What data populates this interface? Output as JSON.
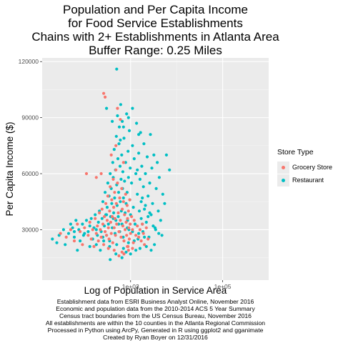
{
  "title_lines": [
    "Population and Per Capita Income",
    "for Food Service Establishments",
    "Chains with 2+ Establishments in Atlanta Area",
    "Buffer Range:  0.25 Miles"
  ],
  "caption_lines": [
    "Establishment data from ESRI Business Analyst Online, November 2016",
    "Economic and population data from the 2010-2014 ACS 5 Year Summary",
    "Census tract boundaries from the US Census Bureau, November 2016",
    "All establishments are within the 10 counties in the Atlanta Regional Commission",
    "Processed in Python using ArcPy, Generated in R using ggplot2 and gganimate",
    "Created by Ryan Boyer on 12/31/2016"
  ],
  "colors": {
    "grocery": "#F8766D",
    "restaurant": "#00BFC4",
    "panel": "#EBEBEB",
    "grid_major": "#FFFFFF",
    "grid_minor": "#F5F5F5"
  },
  "chart_data": {
    "type": "scatter",
    "xlabel": "Log of Population in Service Area",
    "ylabel": "Per Capita Income ($)",
    "x_scale": "log10",
    "xlim": [
      12,
      1000000
    ],
    "ylim": [
      3000,
      122000
    ],
    "x_ticks": [
      {
        "value": 1000,
        "label": "1e+03"
      },
      {
        "value": 100000,
        "label": "1e+05"
      }
    ],
    "y_ticks": [
      {
        "value": 30000,
        "label": "30000"
      },
      {
        "value": 60000,
        "label": "60000"
      },
      {
        "value": 90000,
        "label": "90000"
      },
      {
        "value": 120000,
        "label": "120000"
      }
    ],
    "grid": true,
    "legend": {
      "title": "Store Type",
      "position": "right",
      "entries": [
        "Grocery Store",
        "Restaurant"
      ]
    },
    "series": [
      {
        "name": "Restaurant",
        "points": [
          [
            20,
            25000
          ],
          [
            25,
            23000
          ],
          [
            28,
            27000
          ],
          [
            35,
            30000
          ],
          [
            38,
            22000
          ],
          [
            45,
            28000
          ],
          [
            50,
            33000
          ],
          [
            55,
            31000
          ],
          [
            60,
            26000
          ],
          [
            65,
            35000
          ],
          [
            70,
            19000
          ],
          [
            75,
            30000
          ],
          [
            80,
            24000
          ],
          [
            90,
            33000
          ],
          [
            100,
            28000
          ],
          [
            110,
            35000
          ],
          [
            120,
            29000
          ],
          [
            130,
            21000
          ],
          [
            140,
            36000
          ],
          [
            150,
            25000
          ],
          [
            160,
            31000
          ],
          [
            170,
            38000
          ],
          [
            180,
            22000
          ],
          [
            190,
            27000
          ],
          [
            200,
            34000
          ],
          [
            210,
            40000
          ],
          [
            220,
            19000
          ],
          [
            230,
            29000
          ],
          [
            240,
            36000
          ],
          [
            250,
            45000
          ],
          [
            260,
            24000
          ],
          [
            270,
            32000
          ],
          [
            280,
            50000
          ],
          [
            290,
            38000
          ],
          [
            300,
            27000
          ],
          [
            310,
            42000
          ],
          [
            320,
            55000
          ],
          [
            330,
            33000
          ],
          [
            340,
            48000
          ],
          [
            350,
            21000
          ],
          [
            360,
            60000
          ],
          [
            370,
            37000
          ],
          [
            380,
            52000
          ],
          [
            390,
            44000
          ],
          [
            400,
            31000
          ],
          [
            410,
            66000
          ],
          [
            420,
            58000
          ],
          [
            430,
            39000
          ],
          [
            440,
            73000
          ],
          [
            450,
            47000
          ],
          [
            460,
            28000
          ],
          [
            470,
            62000
          ],
          [
            480,
            35000
          ],
          [
            490,
            80000
          ],
          [
            500,
            54000
          ],
          [
            510,
            43000
          ],
          [
            520,
            91000
          ],
          [
            530,
            68000
          ],
          [
            540,
            37000
          ],
          [
            550,
            50000
          ],
          [
            560,
            76000
          ],
          [
            570,
            85000
          ],
          [
            580,
            29000
          ],
          [
            590,
            64000
          ],
          [
            600,
            45000
          ],
          [
            610,
            97000
          ],
          [
            620,
            57000
          ],
          [
            630,
            40000
          ],
          [
            640,
            70000
          ],
          [
            650,
            33000
          ],
          [
            660,
            88000
          ],
          [
            670,
            52000
          ],
          [
            680,
            61000
          ],
          [
            690,
            26000
          ],
          [
            700,
            47000
          ],
          [
            720,
            79000
          ],
          [
            740,
            56000
          ],
          [
            760,
            39000
          ],
          [
            780,
            66000
          ],
          [
            800,
            44000
          ],
          [
            820,
            92000
          ],
          [
            840,
            50000
          ],
          [
            860,
            35000
          ],
          [
            880,
            72000
          ],
          [
            900,
            58000
          ],
          [
            920,
            30000
          ],
          [
            940,
            83000
          ],
          [
            960,
            46000
          ],
          [
            980,
            63000
          ],
          [
            1000,
            38000
          ],
          [
            1050,
            55000
          ],
          [
            1100,
            75000
          ],
          [
            1150,
            42000
          ],
          [
            1200,
            68000
          ],
          [
            1250,
            33000
          ],
          [
            1300,
            60000
          ],
          [
            1350,
            87000
          ],
          [
            1400,
            49000
          ],
          [
            1450,
            25000
          ],
          [
            1500,
            71000
          ],
          [
            1550,
            40000
          ],
          [
            1600,
            57000
          ],
          [
            1650,
            82000
          ],
          [
            1700,
            36000
          ],
          [
            1750,
            64000
          ],
          [
            1800,
            47000
          ],
          [
            1850,
            29000
          ],
          [
            1900,
            53000
          ],
          [
            1950,
            76000
          ],
          [
            2000,
            41000
          ],
          [
            2100,
            60000
          ],
          [
            2200,
            34000
          ],
          [
            2300,
            69000
          ],
          [
            2400,
            48000
          ],
          [
            2500,
            26000
          ],
          [
            2600,
            55000
          ],
          [
            2700,
            81000
          ],
          [
            2800,
            38000
          ],
          [
            2900,
            63000
          ],
          [
            3000,
            44000
          ],
          [
            3200,
            70000
          ],
          [
            3400,
            31000
          ],
          [
            3600,
            52000
          ],
          [
            3800,
            66000
          ],
          [
            4000,
            40000
          ],
          [
            4200,
            58000
          ],
          [
            4500,
            35000
          ],
          [
            5000,
            49000
          ],
          [
            6000,
            70000
          ],
          [
            7000,
            62000
          ],
          [
            4800,
            27000
          ],
          [
            5500,
            44000
          ],
          [
            3300,
            22000
          ],
          [
            2800,
            19000
          ],
          [
            2200,
            21000
          ],
          [
            1600,
            20000
          ],
          [
            1200,
            24000
          ],
          [
            900,
            23000
          ],
          [
            700,
            20000
          ],
          [
            500,
            22000
          ],
          [
            350,
            24000
          ],
          [
            250,
            26000
          ],
          [
            180,
            30000
          ],
          [
            130,
            32000
          ],
          [
            95,
            27000
          ],
          [
            60,
            29000
          ],
          [
            800,
            18000
          ],
          [
            1000,
            17000
          ],
          [
            1300,
            19000
          ],
          [
            650,
            15000
          ],
          [
            480,
            17000
          ],
          [
            360,
            14000
          ],
          [
            1500,
            28000
          ],
          [
            1800,
            33000
          ],
          [
            2400,
            37000
          ],
          [
            2000,
            26000
          ],
          [
            1100,
            29000
          ],
          [
            850,
            31000
          ],
          [
            550,
            33000
          ],
          [
            420,
            36000
          ],
          [
            300,
            38000
          ],
          [
            500,
            116000
          ],
          [
            300,
            95000
          ],
          [
            700,
            85000
          ],
          [
            900,
            90000
          ],
          [
            400,
            88000
          ],
          [
            1500,
            81000
          ],
          [
            1100,
            95000
          ],
          [
            600,
            78000
          ],
          [
            1400,
            62000
          ],
          [
            1700,
            45000
          ],
          [
            2100,
            43000
          ],
          [
            2600,
            39000
          ],
          [
            3100,
            32000
          ],
          [
            3500,
            30000
          ],
          [
            4100,
            28000
          ]
        ]
      },
      {
        "name": "Grocery Store",
        "points": [
          [
            30,
            28000
          ],
          [
            40,
            26000
          ],
          [
            50,
            30000
          ],
          [
            60,
            24000
          ],
          [
            70,
            33000
          ],
          [
            80,
            29000
          ],
          [
            90,
            22000
          ],
          [
            100,
            31000
          ],
          [
            110,
            60000
          ],
          [
            120,
            27000
          ],
          [
            130,
            34000
          ],
          [
            140,
            25000
          ],
          [
            150,
            30000
          ],
          [
            160,
            21000
          ],
          [
            170,
            36000
          ],
          [
            180,
            28000
          ],
          [
            190,
            32000
          ],
          [
            200,
            24000
          ],
          [
            210,
            39000
          ],
          [
            220,
            30000
          ],
          [
            230,
            26000
          ],
          [
            240,
            41000
          ],
          [
            250,
            33000
          ],
          [
            260,
            22000
          ],
          [
            270,
            37000
          ],
          [
            280,
            29000
          ],
          [
            290,
            44000
          ],
          [
            300,
            27000
          ],
          [
            310,
            35000
          ],
          [
            320,
            48000
          ],
          [
            330,
            31000
          ],
          [
            340,
            25000
          ],
          [
            350,
            40000
          ],
          [
            360,
            53000
          ],
          [
            370,
            34000
          ],
          [
            380,
            28000
          ],
          [
            390,
            46000
          ],
          [
            400,
            37000
          ],
          [
            410,
            23000
          ],
          [
            420,
            57000
          ],
          [
            430,
            42000
          ],
          [
            440,
            31000
          ],
          [
            450,
            50000
          ],
          [
            460,
            36000
          ],
          [
            470,
            27000
          ],
          [
            480,
            62000
          ],
          [
            490,
            44000
          ],
          [
            500,
            33000
          ],
          [
            520,
            55000
          ],
          [
            540,
            39000
          ],
          [
            560,
            29000
          ],
          [
            580,
            47000
          ],
          [
            600,
            35000
          ],
          [
            620,
            26000
          ],
          [
            640,
            52000
          ],
          [
            660,
            41000
          ],
          [
            680,
            32000
          ],
          [
            700,
            45000
          ],
          [
            720,
            24000
          ],
          [
            740,
            38000
          ],
          [
            760,
            30000
          ],
          [
            780,
            49000
          ],
          [
            800,
            34000
          ],
          [
            820,
            27000
          ],
          [
            840,
            43000
          ],
          [
            860,
            36000
          ],
          [
            880,
            21000
          ],
          [
            900,
            40000
          ],
          [
            920,
            31000
          ],
          [
            940,
            25000
          ],
          [
            960,
            46000
          ],
          [
            980,
            33000
          ],
          [
            1000,
            28000
          ],
          [
            1050,
            37000
          ],
          [
            1100,
            30000
          ],
          [
            1150,
            23000
          ],
          [
            1200,
            35000
          ],
          [
            1300,
            27000
          ],
          [
            1400,
            32000
          ],
          [
            1500,
            26000
          ],
          [
            1600,
            30000
          ],
          [
            1700,
            24000
          ],
          [
            1800,
            33000
          ],
          [
            1900,
            28000
          ],
          [
            2000,
            22000
          ],
          [
            2200,
            31000
          ],
          [
            2400,
            25000
          ],
          [
            260,
            103000
          ],
          [
            280,
            101000
          ],
          [
            230,
            60000
          ],
          [
            180,
            58000
          ],
          [
            520,
            95000
          ],
          [
            600,
            89000
          ],
          [
            380,
            70000
          ],
          [
            480,
            75000
          ],
          [
            700,
            66000
          ],
          [
            850,
            21000
          ],
          [
            650,
            18000
          ],
          [
            560,
            16000
          ],
          [
            440,
            19000
          ],
          [
            330,
            20000
          ],
          [
            720,
            17000
          ],
          [
            900,
            19000
          ],
          [
            1100,
            20000
          ]
        ]
      }
    ]
  }
}
